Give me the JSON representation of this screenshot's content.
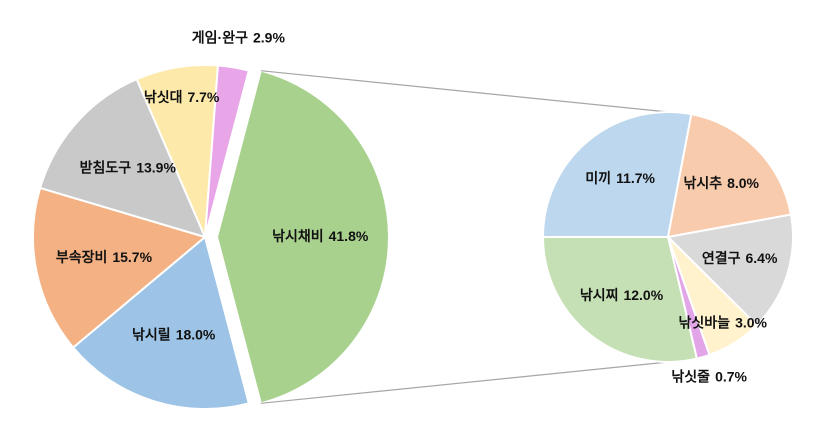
{
  "chart_data": {
    "type": "pie-of-pie",
    "categories": [
      "낚시채비",
      "낚시릴",
      "부속장비",
      "받침도구",
      "낚싯대",
      "게임·완구"
    ],
    "values": [
      41.8,
      18.0,
      15.7,
      13.9,
      7.7,
      2.9
    ],
    "value_labels": [
      "41.8%",
      "18.0%",
      "15.7%",
      "13.9%",
      "7.7%",
      "2.9%"
    ],
    "colors": [
      "#a9d18e",
      "#9dc3e6",
      "#f4b183",
      "#c9c9c9",
      "#fde9a9",
      "#e8a6e8"
    ],
    "secondary": {
      "categories": [
        "미끼",
        "낚시추",
        "연결구",
        "낚싯바늘",
        "낚싯줄",
        "낚시찌"
      ],
      "values": [
        11.7,
        8.0,
        6.4,
        3.0,
        0.7,
        12.0
      ],
      "value_labels": [
        "11.7%",
        "8.0%",
        "6.4%",
        "3.0%",
        "0.7%",
        "12.0%"
      ],
      "colors": [
        "#bdd7ee",
        "#f8cbad",
        "#d9d9d9",
        "#fff2cc",
        "#e2a5e8",
        "#c5e0b4"
      ]
    }
  }
}
